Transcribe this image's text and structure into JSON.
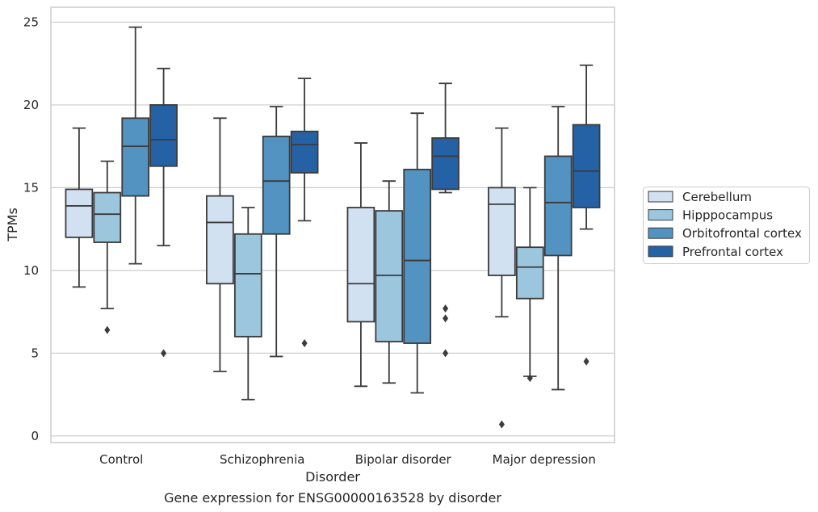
{
  "chart_data": {
    "type": "box",
    "xlabel": "Disorder",
    "ylabel": "TPMs",
    "caption": "Gene expression for ENSG00000163528 by disorder",
    "ylim": [
      -0.4,
      25.9
    ],
    "yticks": [
      0,
      5,
      10,
      15,
      20,
      25
    ],
    "grid": "horizontal",
    "legend_position": "right",
    "categories": [
      "Control",
      "Schizophrenia",
      "Bipolar disorder",
      "Major depression"
    ],
    "series": [
      {
        "name": "Cerebellum",
        "color": "#d2e1f1",
        "boxes": [
          {
            "whislo": 9.0,
            "q1": 12.0,
            "med": 13.9,
            "q3": 14.9,
            "whishi": 18.6,
            "fliers": []
          },
          {
            "whislo": 3.9,
            "q1": 9.2,
            "med": 12.9,
            "q3": 14.5,
            "whishi": 19.2,
            "fliers": []
          },
          {
            "whislo": 3.0,
            "q1": 6.9,
            "med": 9.2,
            "q3": 13.8,
            "whishi": 17.7,
            "fliers": []
          },
          {
            "whislo": 7.2,
            "q1": 9.7,
            "med": 14.0,
            "q3": 15.0,
            "whishi": 18.6,
            "fliers": [
              0.7
            ]
          }
        ]
      },
      {
        "name": "Hipppocampus",
        "color": "#9cc6de",
        "boxes": [
          {
            "whislo": 7.7,
            "q1": 11.7,
            "med": 13.4,
            "q3": 14.7,
            "whishi": 16.6,
            "fliers": [
              6.4
            ]
          },
          {
            "whislo": 2.2,
            "q1": 6.0,
            "med": 9.8,
            "q3": 12.2,
            "whishi": 13.8,
            "fliers": []
          },
          {
            "whislo": 3.2,
            "q1": 5.7,
            "med": 9.7,
            "q3": 13.6,
            "whishi": 15.4,
            "fliers": []
          },
          {
            "whislo": 3.6,
            "q1": 8.3,
            "med": 10.2,
            "q3": 11.4,
            "whishi": 15.0,
            "fliers": [
              3.5
            ]
          }
        ]
      },
      {
        "name": "Orbitofrontal cortex",
        "color": "#5293c2",
        "boxes": [
          {
            "whislo": 10.4,
            "q1": 14.5,
            "med": 17.5,
            "q3": 19.2,
            "whishi": 24.7,
            "fliers": []
          },
          {
            "whislo": 4.8,
            "q1": 12.2,
            "med": 15.4,
            "q3": 18.1,
            "whishi": 19.9,
            "fliers": []
          },
          {
            "whislo": 2.6,
            "q1": 5.6,
            "med": 10.6,
            "q3": 16.1,
            "whishi": 19.5,
            "fliers": []
          },
          {
            "whislo": 2.8,
            "q1": 10.9,
            "med": 14.1,
            "q3": 16.9,
            "whishi": 19.9,
            "fliers": []
          }
        ]
      },
      {
        "name": "Prefrontal cortex",
        "color": "#2462a5",
        "boxes": [
          {
            "whislo": 11.5,
            "q1": 16.3,
            "med": 17.9,
            "q3": 20.0,
            "whishi": 22.2,
            "fliers": [
              5.0
            ]
          },
          {
            "whislo": 13.0,
            "q1": 15.9,
            "med": 17.6,
            "q3": 18.4,
            "whishi": 21.6,
            "fliers": [
              5.6
            ]
          },
          {
            "whislo": 14.7,
            "q1": 14.9,
            "med": 16.9,
            "q3": 18.0,
            "whishi": 21.3,
            "fliers": [
              7.7,
              7.1,
              5.0
            ]
          },
          {
            "whislo": 12.5,
            "q1": 13.8,
            "med": 16.0,
            "q3": 18.8,
            "whishi": 22.4,
            "fliers": [
              4.5
            ]
          }
        ]
      }
    ]
  }
}
